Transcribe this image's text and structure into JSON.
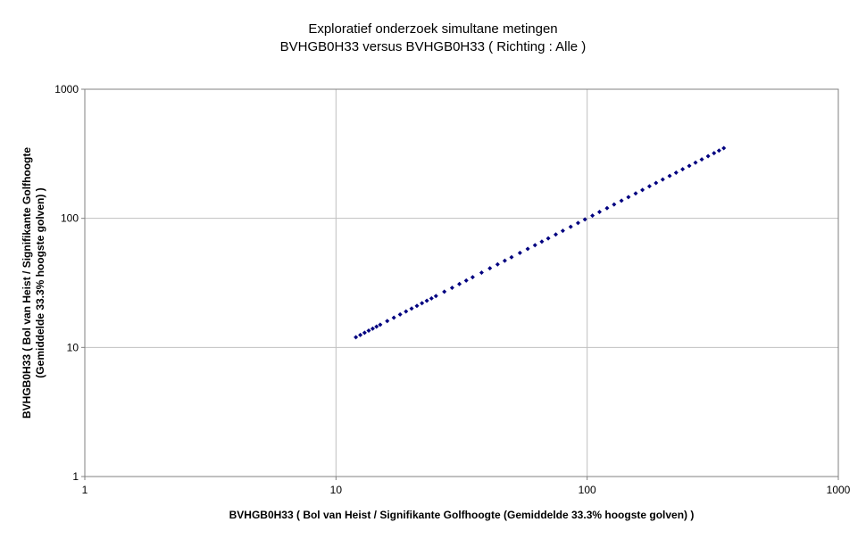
{
  "chart_data": {
    "type": "scatter",
    "title": "Exploratief onderzoek simultane metingen",
    "subtitle": "BVHGB0H33 versus BVHGB0H33 ( Richting : Alle )",
    "x_label": "BVHGB0H33 ( Bol van Heist / Signifikante Golfhoogte (Gemiddelde 33.3% hoogste golven) )",
    "y_label": [
      "BVHGB0H33 ( Bol van Heist / Signifikante Golfhoogte",
      "(Gemiddelde 33.3% hoogste golven) )"
    ],
    "log_x": true,
    "log_y": true,
    "grid": true,
    "xlim": [
      1,
      1000
    ],
    "ylim": [
      1,
      1000
    ],
    "xticks": [
      1,
      10,
      100,
      1000
    ],
    "yticks": [
      1,
      10,
      100,
      1000
    ],
    "series": [
      {
        "color": "#000080",
        "x": [
          12,
          12.5,
          13,
          13.5,
          14,
          14.5,
          15,
          16,
          17,
          18,
          19,
          20,
          21,
          22,
          23,
          24,
          25,
          27,
          29,
          31,
          33,
          35,
          38,
          41,
          44,
          47,
          50,
          54,
          58,
          62,
          66,
          70,
          75,
          80,
          86,
          92,
          98,
          105,
          112,
          120,
          128,
          137,
          146,
          156,
          166,
          177,
          188,
          200,
          213,
          226,
          240,
          255,
          270,
          286,
          303,
          320,
          335,
          350
        ],
        "values": [
          12,
          12.5,
          13,
          13.5,
          14,
          14.5,
          15,
          16,
          17,
          18,
          19,
          20,
          21,
          22,
          23,
          24,
          25,
          27,
          29,
          31,
          33,
          35,
          38,
          41,
          44,
          47,
          50,
          54,
          58,
          62,
          66,
          70,
          75,
          80,
          86,
          92,
          98,
          105,
          112,
          120,
          128,
          137,
          146,
          156,
          166,
          177,
          188,
          200,
          213,
          226,
          240,
          255,
          270,
          286,
          303,
          320,
          335,
          350
        ]
      }
    ]
  }
}
